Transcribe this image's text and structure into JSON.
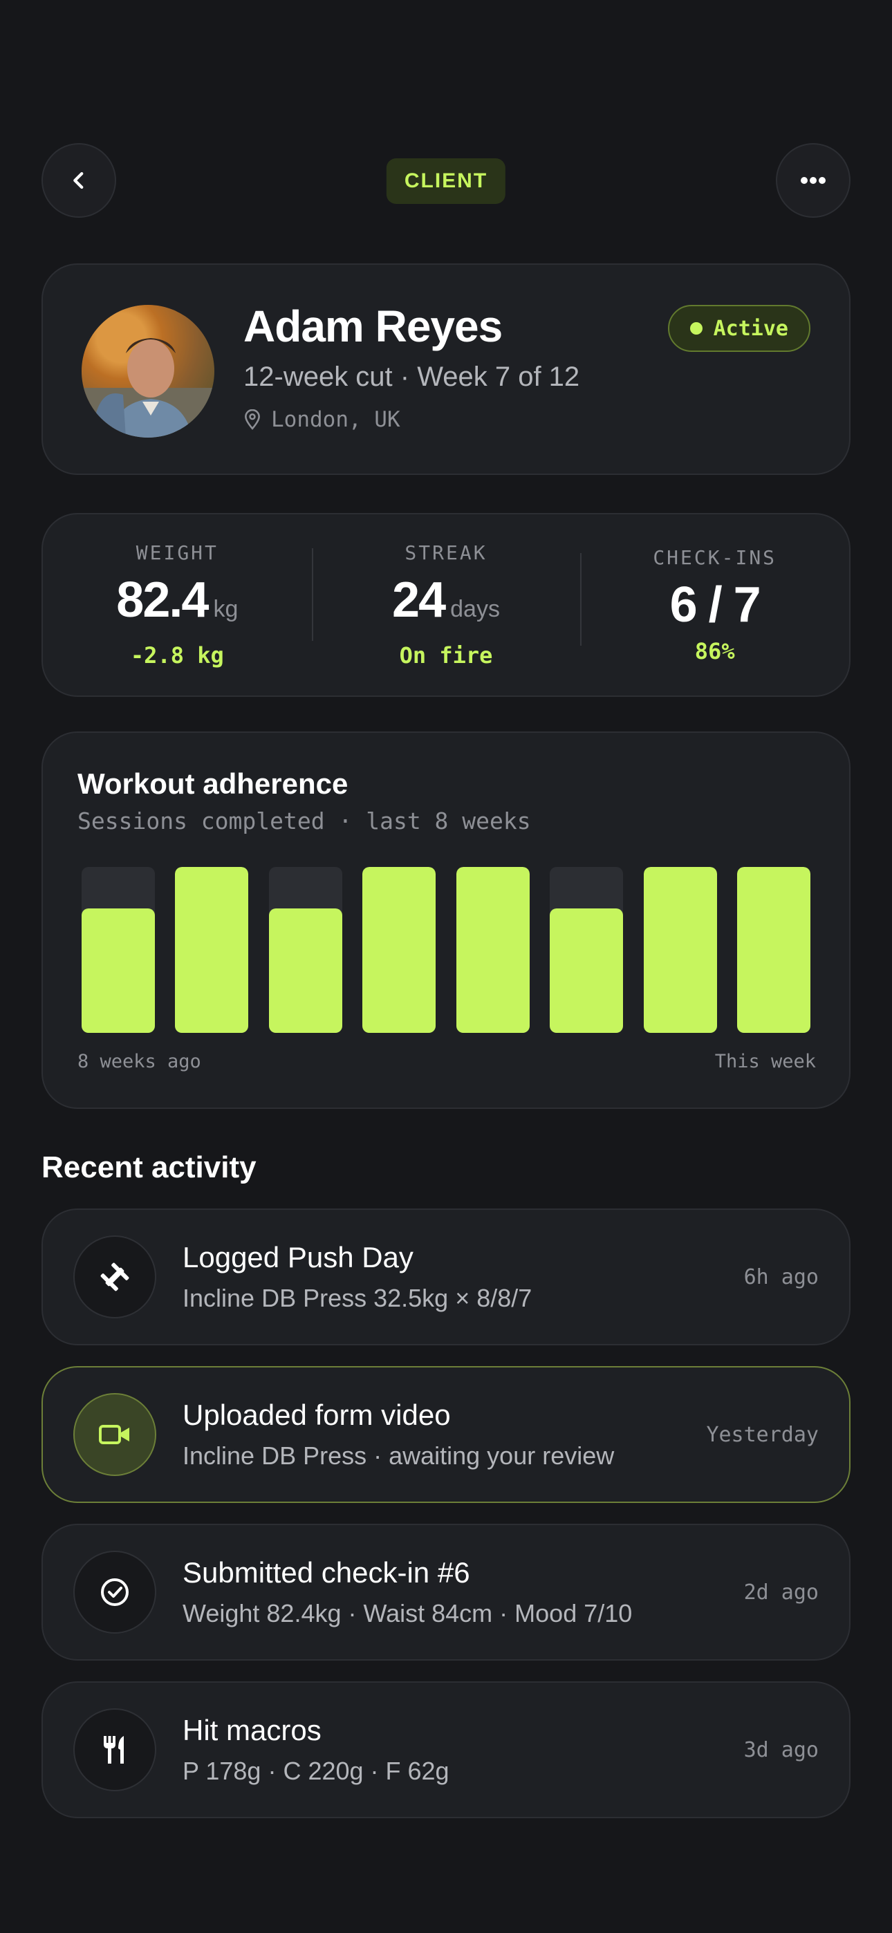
{
  "header": {
    "badge": "CLIENT"
  },
  "profile": {
    "name": "Adam Reyes",
    "program": "12-week cut · Week 7 of 12",
    "location": "London, UK",
    "status": "Active"
  },
  "stats": [
    {
      "label": "WEIGHT",
      "value": "82.4",
      "unit": "kg",
      "sub": "-2.8 kg"
    },
    {
      "label": "STREAK",
      "value": "24",
      "unit": "days",
      "sub": "On fire"
    },
    {
      "label": "CHECK-INS",
      "value": "6 / 7",
      "unit": "",
      "sub": "86%"
    }
  ],
  "chart_data": {
    "type": "bar",
    "title": "Workout adherence",
    "subtitle": "Sessions completed · last 8 weeks",
    "values": [
      0.75,
      1.0,
      0.75,
      1.0,
      1.0,
      0.75,
      1.0,
      1.0
    ],
    "ylim": [
      0,
      1
    ],
    "x_start_label": "8 weeks ago",
    "x_end_label": "This week",
    "color": "#c6f55e",
    "track_color": "#2c2e33"
  },
  "activity": {
    "title": "Recent activity",
    "items": [
      {
        "icon": "dumbbell-icon",
        "title": "Logged Push Day",
        "desc": "Incline DB Press 32.5kg × 8/8/7",
        "time": "6h ago",
        "highlight": false
      },
      {
        "icon": "video-camera-icon",
        "title": "Uploaded form video",
        "desc": "Incline DB Press · awaiting your review",
        "time": "Yesterday",
        "highlight": true
      },
      {
        "icon": "check-circle-icon",
        "title": "Submitted check-in #6",
        "desc": "Weight 82.4kg · Waist 84cm · Mood 7/10",
        "time": "2d ago",
        "highlight": false
      },
      {
        "icon": "fork-knife-icon",
        "title": "Hit macros",
        "desc": "P 178g · C 220g · F 62g",
        "time": "3d ago",
        "highlight": false
      }
    ]
  },
  "colors": {
    "accent": "#c6f55e",
    "background": "#16171a",
    "card": "#1e2024"
  }
}
